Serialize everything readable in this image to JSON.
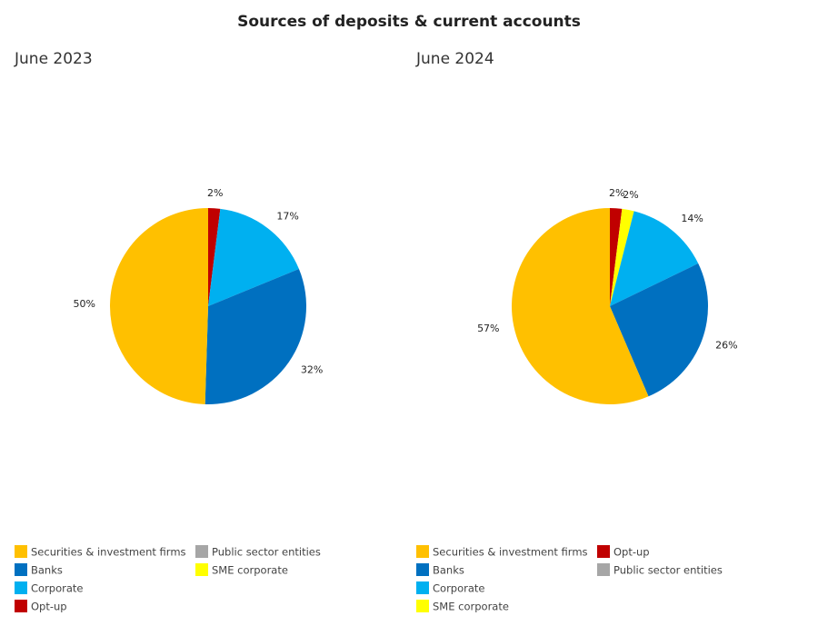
{
  "title": "Sources of deposits & current accounts",
  "chart_data": [
    {
      "type": "pie",
      "subtitle": "June 2023",
      "categories": [
        "Securities & investment firms",
        "Banks",
        "Corporate",
        "Opt-up",
        "Public sector entities",
        "SME corporate"
      ],
      "values": [
        50,
        32,
        17,
        2,
        0,
        0
      ],
      "value_labels": [
        "50%",
        "32%",
        "17%",
        "2%",
        null,
        null
      ],
      "colors": [
        "#ffc000",
        "#0070c0",
        "#00b0f0",
        "#c00000",
        "#a6a6a6",
        "#ffff00"
      ]
    },
    {
      "type": "pie",
      "subtitle": "June 2024",
      "categories": [
        "Securities & investment firms",
        "Banks",
        "Corporate",
        "SME corporate",
        "Opt-up",
        "Public sector entities"
      ],
      "values": [
        57,
        26,
        14,
        2,
        2,
        0
      ],
      "value_labels": [
        "57%",
        "26%",
        "14%",
        "2%",
        "2%",
        null
      ],
      "colors": [
        "#ffc000",
        "#0070c0",
        "#00b0f0",
        "#ffff00",
        "#c00000",
        "#a6a6a6"
      ]
    }
  ]
}
